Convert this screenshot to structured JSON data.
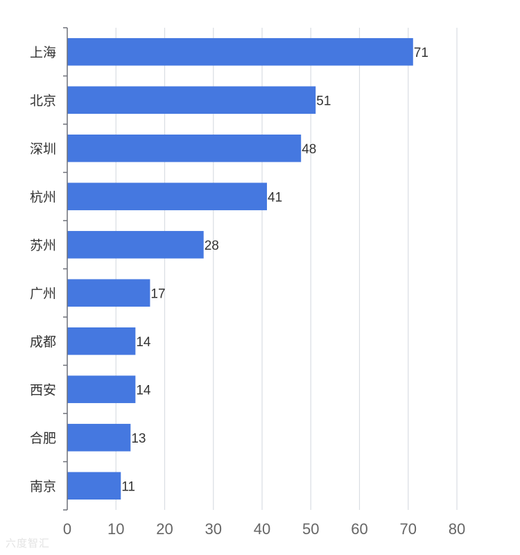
{
  "chart_data": {
    "type": "bar",
    "orientation": "horizontal",
    "categories": [
      "上海",
      "北京",
      "深圳",
      "杭州",
      "苏州",
      "广州",
      "成都",
      "西安",
      "合肥",
      "南京"
    ],
    "values": [
      71,
      51,
      48,
      41,
      28,
      17,
      14,
      14,
      13,
      11
    ],
    "xlim": [
      0,
      80
    ],
    "xticks": [
      0,
      10,
      20,
      30,
      40,
      50,
      60,
      70,
      80
    ],
    "grid": true,
    "data_labels": true,
    "bar_color": "#4578e0"
  },
  "watermark": "六度智汇"
}
